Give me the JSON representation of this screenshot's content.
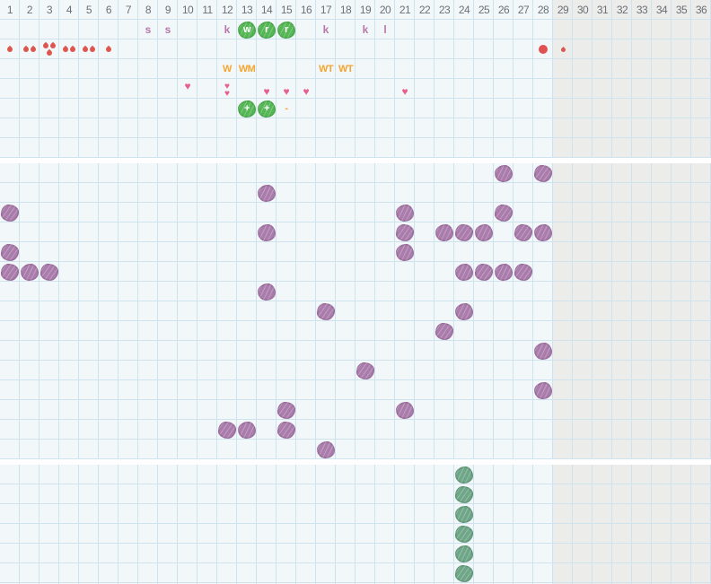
{
  "colors": {
    "bg": "#f2f7fa",
    "inactive_bg": "#ececea",
    "gridline": "#cfe3ee",
    "daynum": "#6a7075",
    "letter": "#b678a8",
    "orange": "#f5a52d",
    "red": "#db574f",
    "dot": "#e05252",
    "pink": "#e5608a",
    "green": "#54b654",
    "purple": "#aa7cab",
    "sage": "#6fa687"
  },
  "grid": {
    "columns": 36,
    "cell_size": 22,
    "inactive_from_day": 29,
    "day_numbers": [
      "1",
      "2",
      "3",
      "4",
      "5",
      "6",
      "7",
      "8",
      "9",
      "10",
      "11",
      "12",
      "13",
      "14",
      "15",
      "16",
      "17",
      "18",
      "19",
      "20",
      "21",
      "22",
      "23",
      "24",
      "25",
      "26",
      "27",
      "28",
      "29",
      "30",
      "31",
      "32",
      "33",
      "34",
      "35",
      "36"
    ],
    "band1": {
      "rows": 8,
      "marks": [
        {
          "row": 1,
          "day": 8,
          "type": "letter",
          "text": "s"
        },
        {
          "row": 1,
          "day": 9,
          "type": "letter",
          "text": "s"
        },
        {
          "row": 1,
          "day": 12,
          "type": "letter",
          "text": "k"
        },
        {
          "row": 1,
          "day": 13,
          "type": "green-letter",
          "text": "w"
        },
        {
          "row": 1,
          "day": 14,
          "type": "green-letter",
          "text": "r"
        },
        {
          "row": 1,
          "day": 15,
          "type": "green-letter",
          "text": "r"
        },
        {
          "row": 1,
          "day": 17,
          "type": "letter",
          "text": "k"
        },
        {
          "row": 1,
          "day": 19,
          "type": "letter",
          "text": "k"
        },
        {
          "row": 1,
          "day": 20,
          "type": "letter",
          "text": "l"
        },
        {
          "row": 2,
          "day": 1,
          "type": "drops",
          "count": 1
        },
        {
          "row": 2,
          "day": 2,
          "type": "drops",
          "count": 2
        },
        {
          "row": 2,
          "day": 3,
          "type": "drops",
          "count": 3
        },
        {
          "row": 2,
          "day": 4,
          "type": "drops",
          "count": 2
        },
        {
          "row": 2,
          "day": 5,
          "type": "drops",
          "count": 2
        },
        {
          "row": 2,
          "day": 6,
          "type": "drops",
          "count": 1
        },
        {
          "row": 2,
          "day": 28,
          "type": "dot"
        },
        {
          "row": 2,
          "day": 29,
          "type": "drops",
          "count": 1,
          "small": true
        },
        {
          "row": 3,
          "day": 12,
          "type": "orange",
          "text": "W"
        },
        {
          "row": 3,
          "day": 13,
          "type": "orange",
          "text": "WM"
        },
        {
          "row": 3,
          "day": 17,
          "type": "orange",
          "text": "WT"
        },
        {
          "row": 3,
          "day": 18,
          "type": "orange",
          "text": "WT"
        },
        {
          "row": 4,
          "day": 10,
          "type": "heart",
          "valign": "top"
        },
        {
          "row": 4,
          "day": 12,
          "type": "heart2"
        },
        {
          "row": 4,
          "day": 14,
          "type": "heart",
          "valign": "bottom"
        },
        {
          "row": 4,
          "day": 15,
          "type": "heart",
          "valign": "bottom"
        },
        {
          "row": 4,
          "day": 16,
          "type": "heart",
          "valign": "bottom"
        },
        {
          "row": 4,
          "day": 21,
          "type": "heart",
          "valign": "bottom"
        },
        {
          "row": 5,
          "day": 13,
          "type": "green-letter",
          "text": "+"
        },
        {
          "row": 5,
          "day": 14,
          "type": "green-letter",
          "text": "+"
        },
        {
          "row": 5,
          "day": 15,
          "type": "orange",
          "text": "-"
        }
      ],
      "heart_glyph": "♥"
    },
    "band2": {
      "rows": 15,
      "purple_marks": [
        [
          0,
          26
        ],
        [
          0,
          28
        ],
        [
          1,
          14
        ],
        [
          2,
          1
        ],
        [
          2,
          21
        ],
        [
          2,
          26
        ],
        [
          3,
          14
        ],
        [
          3,
          21
        ],
        [
          3,
          23
        ],
        [
          3,
          24
        ],
        [
          3,
          25
        ],
        [
          3,
          27
        ],
        [
          3,
          28
        ],
        [
          4,
          1
        ],
        [
          4,
          21
        ],
        [
          5,
          1
        ],
        [
          5,
          2
        ],
        [
          5,
          3
        ],
        [
          5,
          24
        ],
        [
          5,
          25
        ],
        [
          5,
          26
        ],
        [
          5,
          27
        ],
        [
          6,
          14
        ],
        [
          7,
          17
        ],
        [
          7,
          24
        ],
        [
          8,
          23
        ],
        [
          9,
          28
        ],
        [
          10,
          19
        ],
        [
          11,
          28
        ],
        [
          12,
          15
        ],
        [
          12,
          21
        ],
        [
          13,
          12
        ],
        [
          13,
          13
        ],
        [
          13,
          15
        ],
        [
          14,
          17
        ]
      ]
    },
    "band3": {
      "rows": 6,
      "sage_marks": [
        [
          0,
          24
        ],
        [
          1,
          24
        ],
        [
          2,
          24
        ],
        [
          3,
          24
        ],
        [
          4,
          24
        ],
        [
          5,
          24
        ]
      ]
    }
  }
}
